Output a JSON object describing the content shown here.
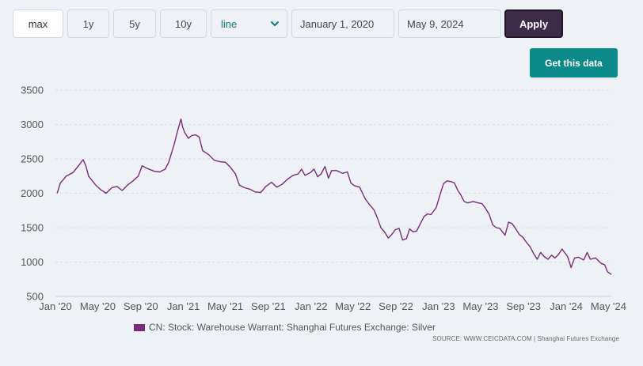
{
  "toolbar": {
    "ranges": [
      {
        "label": "max",
        "active": true
      },
      {
        "label": "1y",
        "active": false
      },
      {
        "label": "5y",
        "active": false
      },
      {
        "label": "10y",
        "active": false
      }
    ],
    "chart_type": "line",
    "start_date": "January 1, 2020",
    "end_date": "May 9, 2024",
    "apply_label": "Apply",
    "get_data_label": "Get this data"
  },
  "legend": {
    "label": "CN: Stock: Warehouse Warrant: Shanghai Futures Exchange: Silver"
  },
  "source": "SOURCE: WWW.CEICDATA.COM | Shanghai Futures Exchange",
  "colors": {
    "series": "#7b2b7b",
    "grid": "#d8dee8",
    "apply_bg": "#3d2b4a",
    "get_data_bg": "#0c8a8a",
    "select_text": "#0a7c78"
  },
  "icons": {
    "select_arrow": "chevron-down-icon"
  },
  "chart_data": {
    "type": "line",
    "title": "",
    "xlabel": "",
    "ylabel": "",
    "ylim": [
      500,
      3500
    ],
    "xlim": [
      "2020-01-01",
      "2024-05-09"
    ],
    "grid": true,
    "legend_position": "bottom",
    "y_ticks": [
      500,
      1000,
      1500,
      2000,
      2500,
      3000,
      3500
    ],
    "x_ticks": [
      {
        "date": "2020-01-01",
        "label": "Jan '20"
      },
      {
        "date": "2020-05-01",
        "label": "May '20"
      },
      {
        "date": "2020-09-01",
        "label": "Sep '20"
      },
      {
        "date": "2021-01-01",
        "label": "Jan '21"
      },
      {
        "date": "2021-05-01",
        "label": "May '21"
      },
      {
        "date": "2021-09-01",
        "label": "Sep '21"
      },
      {
        "date": "2022-01-01",
        "label": "Jan '22"
      },
      {
        "date": "2022-05-01",
        "label": "May '22"
      },
      {
        "date": "2022-09-01",
        "label": "Sep '22"
      },
      {
        "date": "2023-01-01",
        "label": "Jan '23"
      },
      {
        "date": "2023-05-01",
        "label": "May '23"
      },
      {
        "date": "2023-09-01",
        "label": "Sep '23"
      },
      {
        "date": "2024-01-01",
        "label": "Jan '24"
      },
      {
        "date": "2024-05-01",
        "label": "May '24"
      }
    ],
    "series": [
      {
        "name": "CN: Stock: Warehouse Warrant: Shanghai Futures Exchange: Silver",
        "points": [
          [
            "2020-01-06",
            2000
          ],
          [
            "2020-01-15",
            2150
          ],
          [
            "2020-02-01",
            2250
          ],
          [
            "2020-02-20",
            2300
          ],
          [
            "2020-03-10",
            2420
          ],
          [
            "2020-03-20",
            2490
          ],
          [
            "2020-03-28",
            2400
          ],
          [
            "2020-04-05",
            2250
          ],
          [
            "2020-04-25",
            2120
          ],
          [
            "2020-05-10",
            2050
          ],
          [
            "2020-05-25",
            2000
          ],
          [
            "2020-06-10",
            2080
          ],
          [
            "2020-06-25",
            2100
          ],
          [
            "2020-07-10",
            2040
          ],
          [
            "2020-07-25",
            2120
          ],
          [
            "2020-08-10",
            2180
          ],
          [
            "2020-08-25",
            2250
          ],
          [
            "2020-09-05",
            2400
          ],
          [
            "2020-09-20",
            2360
          ],
          [
            "2020-10-10",
            2320
          ],
          [
            "2020-10-25",
            2310
          ],
          [
            "2020-11-10",
            2350
          ],
          [
            "2020-11-20",
            2450
          ],
          [
            "2020-12-05",
            2700
          ],
          [
            "2020-12-15",
            2900
          ],
          [
            "2020-12-25",
            3080
          ],
          [
            "2020-12-30",
            2960
          ],
          [
            "2021-01-05",
            2880
          ],
          [
            "2021-01-15",
            2800
          ],
          [
            "2021-01-25",
            2840
          ],
          [
            "2021-02-05",
            2850
          ],
          [
            "2021-02-15",
            2820
          ],
          [
            "2021-02-25",
            2620
          ],
          [
            "2021-03-15",
            2560
          ],
          [
            "2021-03-30",
            2480
          ],
          [
            "2021-04-15",
            2460
          ],
          [
            "2021-05-01",
            2450
          ],
          [
            "2021-05-15",
            2380
          ],
          [
            "2021-05-30",
            2280
          ],
          [
            "2021-06-10",
            2120
          ],
          [
            "2021-06-25",
            2080
          ],
          [
            "2021-07-10",
            2060
          ],
          [
            "2021-07-25",
            2020
          ],
          [
            "2021-08-10",
            2010
          ],
          [
            "2021-08-25",
            2100
          ],
          [
            "2021-09-10",
            2160
          ],
          [
            "2021-09-25",
            2090
          ],
          [
            "2021-10-10",
            2130
          ],
          [
            "2021-10-25",
            2200
          ],
          [
            "2021-11-10",
            2260
          ],
          [
            "2021-11-25",
            2280
          ],
          [
            "2021-12-05",
            2350
          ],
          [
            "2021-12-15",
            2260
          ],
          [
            "2021-12-30",
            2300
          ],
          [
            "2022-01-10",
            2350
          ],
          [
            "2022-01-20",
            2240
          ],
          [
            "2022-01-30",
            2280
          ],
          [
            "2022-02-10",
            2390
          ],
          [
            "2022-02-20",
            2220
          ],
          [
            "2022-03-01",
            2330
          ],
          [
            "2022-03-15",
            2330
          ],
          [
            "2022-04-01",
            2290
          ],
          [
            "2022-04-15",
            2310
          ],
          [
            "2022-04-25",
            2150
          ],
          [
            "2022-05-05",
            2110
          ],
          [
            "2022-05-20",
            2090
          ],
          [
            "2022-06-05",
            1920
          ],
          [
            "2022-06-15",
            1850
          ],
          [
            "2022-06-30",
            1760
          ],
          [
            "2022-07-10",
            1640
          ],
          [
            "2022-07-20",
            1500
          ],
          [
            "2022-07-30",
            1440
          ],
          [
            "2022-08-10",
            1350
          ],
          [
            "2022-08-20",
            1400
          ],
          [
            "2022-08-30",
            1470
          ],
          [
            "2022-09-10",
            1490
          ],
          [
            "2022-09-20",
            1320
          ],
          [
            "2022-10-01",
            1340
          ],
          [
            "2022-10-10",
            1480
          ],
          [
            "2022-10-20",
            1440
          ],
          [
            "2022-10-30",
            1450
          ],
          [
            "2022-11-10",
            1560
          ],
          [
            "2022-11-20",
            1660
          ],
          [
            "2022-11-30",
            1700
          ],
          [
            "2022-12-10",
            1690
          ],
          [
            "2022-12-25",
            1790
          ],
          [
            "2023-01-05",
            1980
          ],
          [
            "2023-01-15",
            2140
          ],
          [
            "2023-01-25",
            2180
          ],
          [
            "2023-02-05",
            2170
          ],
          [
            "2023-02-15",
            2150
          ],
          [
            "2023-02-25",
            2040
          ],
          [
            "2023-03-05",
            1980
          ],
          [
            "2023-03-15",
            1880
          ],
          [
            "2023-03-25",
            1860
          ],
          [
            "2023-04-10",
            1880
          ],
          [
            "2023-04-25",
            1860
          ],
          [
            "2023-05-05",
            1850
          ],
          [
            "2023-05-15",
            1780
          ],
          [
            "2023-05-25",
            1700
          ],
          [
            "2023-06-05",
            1540
          ],
          [
            "2023-06-15",
            1500
          ],
          [
            "2023-06-25",
            1490
          ],
          [
            "2023-07-10",
            1390
          ],
          [
            "2023-07-20",
            1580
          ],
          [
            "2023-07-30",
            1560
          ],
          [
            "2023-08-10",
            1480
          ],
          [
            "2023-08-20",
            1400
          ],
          [
            "2023-08-30",
            1360
          ],
          [
            "2023-09-10",
            1280
          ],
          [
            "2023-09-20",
            1220
          ],
          [
            "2023-09-30",
            1120
          ],
          [
            "2023-10-10",
            1040
          ],
          [
            "2023-10-20",
            1140
          ],
          [
            "2023-10-30",
            1080
          ],
          [
            "2023-11-10",
            1040
          ],
          [
            "2023-11-20",
            1100
          ],
          [
            "2023-11-30",
            1060
          ],
          [
            "2023-12-10",
            1110
          ],
          [
            "2023-12-20",
            1190
          ],
          [
            "2024-01-05",
            1080
          ],
          [
            "2024-01-15",
            920
          ],
          [
            "2024-01-25",
            1060
          ],
          [
            "2024-02-05",
            1070
          ],
          [
            "2024-02-20",
            1030
          ],
          [
            "2024-03-01",
            1140
          ],
          [
            "2024-03-10",
            1040
          ],
          [
            "2024-03-25",
            1060
          ],
          [
            "2024-04-10",
            980
          ],
          [
            "2024-04-20",
            960
          ],
          [
            "2024-04-28",
            860
          ],
          [
            "2024-05-09",
            820
          ]
        ]
      }
    ]
  }
}
